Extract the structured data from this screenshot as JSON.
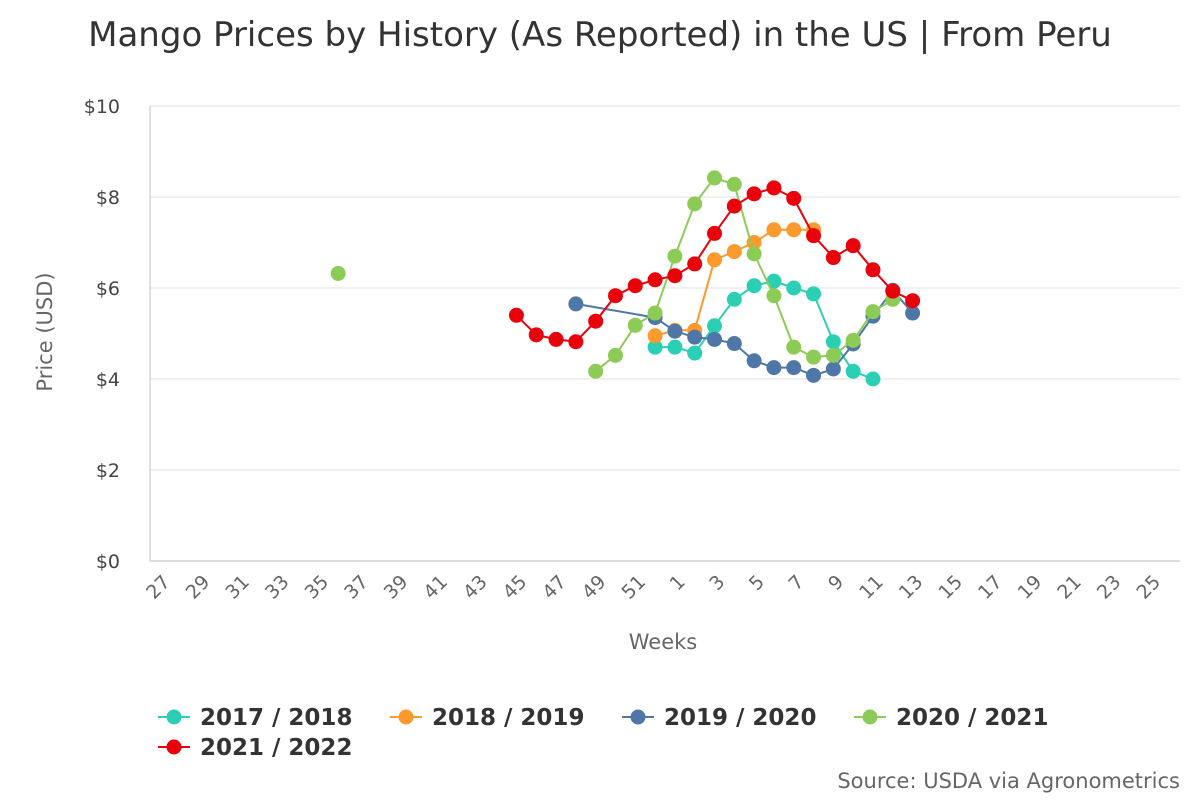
{
  "chart_data": {
    "type": "line",
    "title": "Mango Prices by History (As Reported) in the US | From Peru",
    "xlabel": "Weeks",
    "ylabel": "Price (USD)",
    "source": "Source: USDA via Agronometrics",
    "ylim": [
      0,
      10
    ],
    "yticks": [
      "$0",
      "$2",
      "$4",
      "$6",
      "$8",
      "$10"
    ],
    "y_tick_values": [
      0,
      2,
      4,
      6,
      8,
      10
    ],
    "categories": [
      "27",
      "28",
      "29",
      "30",
      "31",
      "32",
      "33",
      "34",
      "35",
      "36",
      "37",
      "38",
      "39",
      "40",
      "41",
      "42",
      "43",
      "44",
      "45",
      "46",
      "47",
      "48",
      "49",
      "50",
      "51",
      "52",
      "1",
      "2",
      "3",
      "4",
      "5",
      "6",
      "7",
      "8",
      "9",
      "10",
      "11",
      "12",
      "13",
      "14",
      "15",
      "16",
      "17",
      "18",
      "19",
      "20",
      "21",
      "22",
      "23",
      "24",
      "25",
      "26"
    ],
    "x_tick_labels": [
      "27",
      "29",
      "31",
      "33",
      "35",
      "37",
      "39",
      "41",
      "43",
      "45",
      "47",
      "49",
      "51",
      "1",
      "3",
      "5",
      "7",
      "9",
      "11",
      "13",
      "15",
      "17",
      "19",
      "21",
      "23",
      "25"
    ],
    "grid": true,
    "legend_position": "bottom",
    "series": [
      {
        "name": "2017 / 2018",
        "color": "#2bd0b4",
        "points": [
          [
            "52",
            4.7
          ],
          [
            "1",
            4.7
          ],
          [
            "2",
            4.57
          ],
          [
            "3",
            5.17
          ],
          [
            "4",
            5.75
          ],
          [
            "5",
            6.05
          ],
          [
            "6",
            6.15
          ],
          [
            "7",
            6.0
          ],
          [
            "8",
            5.87
          ],
          [
            "9",
            4.82
          ],
          [
            "10",
            4.17
          ],
          [
            "11",
            4.0
          ]
        ]
      },
      {
        "name": "2018 / 2019",
        "color": "#fd9a2d",
        "points": [
          [
            "52",
            4.95
          ],
          [
            "1",
            5.07
          ],
          [
            "2",
            5.07
          ],
          [
            "3",
            6.62
          ],
          [
            "4",
            6.8
          ],
          [
            "5",
            7.0
          ],
          [
            "6",
            7.28
          ],
          [
            "7",
            7.28
          ],
          [
            "8",
            7.28
          ]
        ]
      },
      {
        "name": "2019 / 2020",
        "color": "#4e77a8",
        "points": [
          [
            "48",
            5.65
          ],
          [
            "52",
            5.35
          ],
          [
            "1",
            5.05
          ],
          [
            "2",
            4.92
          ],
          [
            "3",
            4.87
          ],
          [
            "4",
            4.78
          ],
          [
            "5",
            4.4
          ],
          [
            "6",
            4.25
          ],
          [
            "7",
            4.25
          ],
          [
            "8",
            4.08
          ],
          [
            "9",
            4.22
          ],
          [
            "10",
            4.77
          ],
          [
            "11",
            5.38
          ],
          [
            "12",
            5.95
          ],
          [
            "13",
            5.45
          ]
        ]
      },
      {
        "name": "2020 / 2021",
        "color": "#8dcb57",
        "points": [
          [
            "36",
            6.32
          ],
          null,
          [
            "49",
            4.17
          ],
          [
            "50",
            4.52
          ],
          [
            "51",
            5.18
          ],
          [
            "52",
            5.45
          ],
          [
            "1",
            6.7
          ],
          [
            "2",
            7.85
          ],
          [
            "3",
            8.42
          ],
          [
            "4",
            8.28
          ],
          [
            "5",
            6.75
          ],
          [
            "6",
            5.83
          ],
          [
            "7",
            4.7
          ],
          [
            "8",
            4.48
          ],
          [
            "9",
            4.52
          ],
          [
            "10",
            4.85
          ],
          [
            "11",
            5.48
          ],
          [
            "12",
            5.75
          ]
        ]
      },
      {
        "name": "2021 / 2022",
        "color": "#e8000b",
        "points": [
          [
            "45",
            5.4
          ],
          [
            "46",
            4.97
          ],
          [
            "47",
            4.87
          ],
          [
            "48",
            4.82
          ],
          [
            "49",
            5.27
          ],
          [
            "50",
            5.83
          ],
          [
            "51",
            6.05
          ],
          [
            "52",
            6.18
          ],
          [
            "1",
            6.27
          ],
          [
            "2",
            6.53
          ],
          [
            "3",
            7.2
          ],
          [
            "4",
            7.8
          ],
          [
            "5",
            8.07
          ],
          [
            "6",
            8.2
          ],
          [
            "7",
            7.97
          ],
          [
            "8",
            7.15
          ],
          [
            "9",
            6.67
          ],
          [
            "10",
            6.93
          ],
          [
            "11",
            6.4
          ],
          [
            "12",
            5.93
          ],
          [
            "13",
            5.72
          ]
        ]
      }
    ]
  }
}
